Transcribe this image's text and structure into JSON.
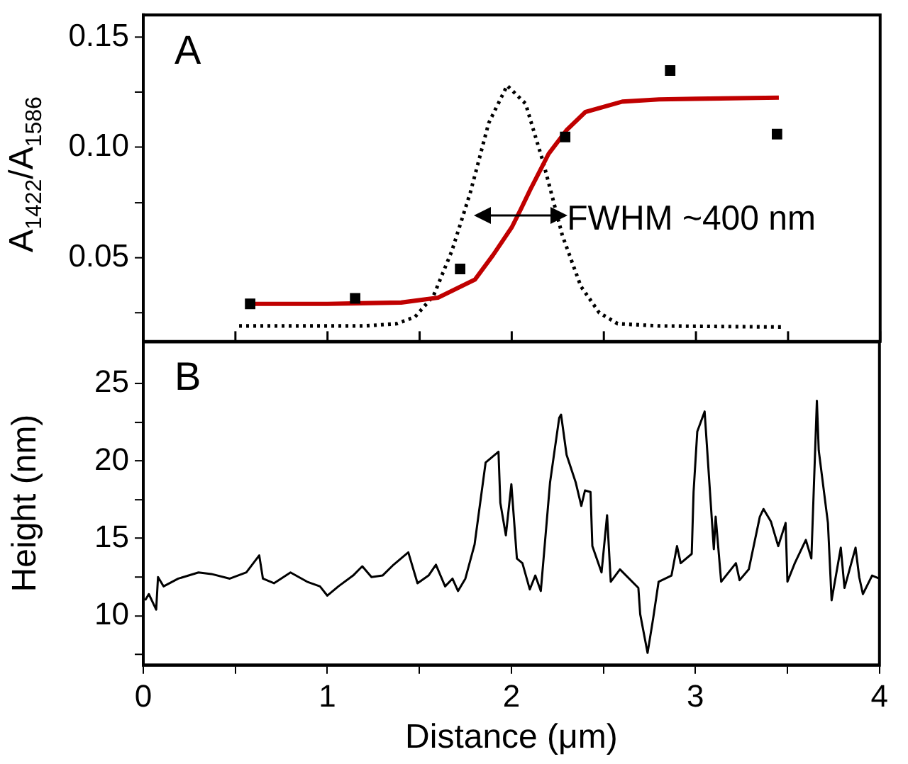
{
  "chart_data": [
    {
      "type": "scatter",
      "ylabel": "A$_{1422}$/A$_{1586}$",
      "annotations": [
        "A",
        {
          "text": "FWHM ~400 nm",
          "x": 2.3,
          "y": 0.067
        }
      ],
      "xlim": [
        0,
        4
      ],
      "xticks": [
        0,
        {
          "value": 0.5,
          "label": null
        },
        1,
        {
          "value": 1.5,
          "label": null
        },
        2,
        {
          "value": 2.5,
          "label": null
        },
        3,
        {
          "value": 3.5,
          "label": null
        },
        4
      ],
      "ylim": [
        0.012,
        0.16
      ],
      "yticks": [
        {
          "value": 0.025,
          "label": null
        },
        0.05,
        {
          "value": 0.075,
          "label": null
        },
        {
          "value": 0.1,
          "label": "0.10"
        },
        {
          "value": 0.125,
          "label": null
        },
        0.15
      ],
      "tick_labels": "y",
      "grid": false,
      "legend": false,
      "series": [
        {
          "type": "scatter",
          "color": "#000000",
          "marker": "square",
          "x": [
            0.58,
            1.15,
            1.72,
            2.29,
            2.86,
            3.44
          ],
          "values": [
            0.029,
            0.0315,
            0.0448,
            0.1047,
            0.1348,
            0.106
          ]
        },
        {
          "type": "line",
          "color": "#c00000",
          "marker": "none",
          "line_style": "solid",
          "x": [
            0.58,
            1.0,
            1.4,
            1.6,
            1.8,
            1.9,
            2.0,
            2.05,
            2.1,
            2.2,
            2.3,
            2.4,
            2.6,
            2.8,
            3.0,
            3.45
          ],
          "values": [
            0.029,
            0.029,
            0.0296,
            0.0318,
            0.04,
            0.0513,
            0.0637,
            0.072,
            0.0807,
            0.097,
            0.108,
            0.116,
            0.1207,
            0.1217,
            0.122,
            0.1225
          ]
        },
        {
          "type": "line",
          "color": "#000000",
          "marker": "none",
          "line_style": "dotted",
          "x": [
            0.52,
            1.2,
            1.375,
            1.475,
            1.575,
            1.675,
            1.775,
            1.875,
            1.975,
            2.075,
            2.175,
            2.275,
            2.375,
            2.475,
            2.575,
            2.8,
            3.48
          ],
          "values": [
            0.019,
            0.019,
            0.02,
            0.0231,
            0.0326,
            0.053,
            0.0794,
            0.111,
            0.128,
            0.1198,
            0.092,
            0.06,
            0.037,
            0.025,
            0.02,
            0.019,
            0.0185
          ]
        }
      ]
    },
    {
      "type": "line",
      "xlabel": "Distance (μm)",
      "ylabel": "Height (nm)",
      "annotations": [
        "B"
      ],
      "xlim": [
        0,
        4
      ],
      "xticks": [
        0,
        {
          "value": 0.5,
          "label": null
        },
        1,
        {
          "value": 1.5,
          "label": null
        },
        2,
        {
          "value": 2.5,
          "label": null
        },
        3,
        {
          "value": 3.5,
          "label": null
        },
        4
      ],
      "ylim": [
        6.8,
        27.7
      ],
      "yticks": [
        {
          "value": 7.5,
          "label": null
        },
        10,
        {
          "value": 12.5,
          "label": null
        },
        15,
        {
          "value": 17.5,
          "label": null
        },
        20,
        {
          "value": 22.5,
          "label": null
        },
        25
      ],
      "grid": false,
      "legend": false,
      "series": [
        {
          "color": "#000000",
          "marker": "none",
          "line_style": "solid",
          "x": [
            0.01,
            0.03,
            0.07,
            0.08,
            0.11,
            0.19,
            0.3,
            0.37,
            0.47,
            0.56,
            0.63,
            0.65,
            0.71,
            0.8,
            0.89,
            0.96,
            1.0,
            1.06,
            1.14,
            1.19,
            1.24,
            1.3,
            1.36,
            1.41,
            1.44,
            1.49,
            1.55,
            1.59,
            1.64,
            1.68,
            1.71,
            1.75,
            1.8,
            1.86,
            1.93,
            1.94,
            1.97,
            2.0,
            2.03,
            2.06,
            2.1,
            2.13,
            2.16,
            2.21,
            2.26,
            2.27,
            2.3,
            2.35,
            2.38,
            2.4,
            2.43,
            2.44,
            2.49,
            2.52,
            2.54,
            2.59,
            2.69,
            2.7,
            2.74,
            2.77,
            2.8,
            2.87,
            2.9,
            2.92,
            2.98,
            2.99,
            3.01,
            3.05,
            3.1,
            3.11,
            3.14,
            3.22,
            3.24,
            3.29,
            3.35,
            3.37,
            3.41,
            3.45,
            3.49,
            3.5,
            3.54,
            3.6,
            3.63,
            3.66,
            3.67,
            3.72,
            3.74,
            3.79,
            3.81,
            3.87,
            3.89,
            3.91,
            3.96,
            4.0
          ],
          "values": [
            11.0,
            11.4,
            10.4,
            12.5,
            11.9,
            12.4,
            12.8,
            12.7,
            12.4,
            12.8,
            13.9,
            12.4,
            12.1,
            12.8,
            12.2,
            11.9,
            11.3,
            11.9,
            12.6,
            13.2,
            12.5,
            12.6,
            13.3,
            13.8,
            14.1,
            12.1,
            12.6,
            13.3,
            11.9,
            12.4,
            11.6,
            12.4,
            14.6,
            19.9,
            20.6,
            17.3,
            15.2,
            18.5,
            13.7,
            13.4,
            11.7,
            12.6,
            11.6,
            18.6,
            22.8,
            23.0,
            20.4,
            18.6,
            17.1,
            18.1,
            18.0,
            14.5,
            12.8,
            16.5,
            12.2,
            13.0,
            11.8,
            10.1,
            7.6,
            9.8,
            12.2,
            12.6,
            14.5,
            13.4,
            14.0,
            18.0,
            21.9,
            23.2,
            14.3,
            16.4,
            12.2,
            13.4,
            12.3,
            13.0,
            16.4,
            16.9,
            16.1,
            14.5,
            16.0,
            12.2,
            13.4,
            14.9,
            13.7,
            23.9,
            20.7,
            16.0,
            11.0,
            14.4,
            11.8,
            14.4,
            12.5,
            11.4,
            12.6,
            12.4
          ]
        }
      ]
    }
  ]
}
